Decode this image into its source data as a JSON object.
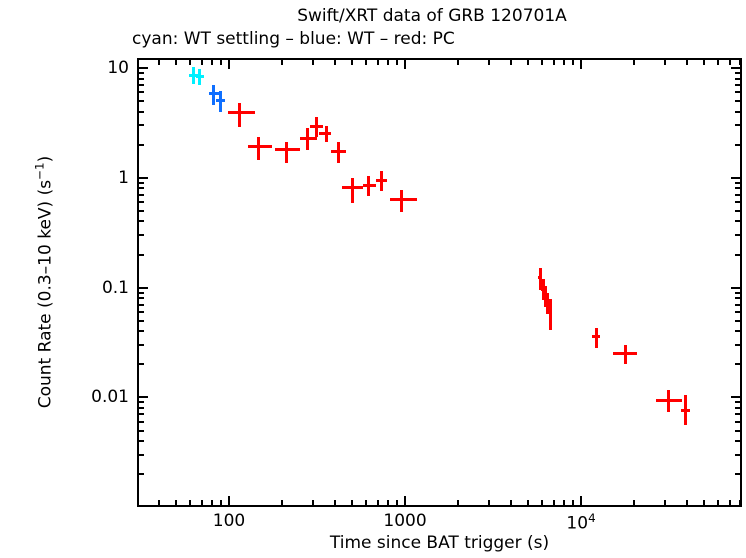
{
  "title": "Swift/XRT data of GRB 120701A",
  "legend_line": "cyan: WT settling – blue: WT – red: PC",
  "x_axis": {
    "label": "Time since BAT trigger (s)",
    "ticks": [
      {
        "v": 100,
        "base": "100",
        "sup": ""
      },
      {
        "v": 1000,
        "base": "1000",
        "sup": ""
      },
      {
        "v": 10000,
        "base": "10",
        "sup": "4"
      }
    ]
  },
  "y_axis": {
    "label_main": "Count Rate (0.3–10 keV) (s",
    "label_sup": "−1",
    "label_close": ")",
    "ticks": [
      {
        "v": 10,
        "label": "10"
      },
      {
        "v": 1,
        "label": "1"
      },
      {
        "v": 0.1,
        "label": "0.1"
      },
      {
        "v": 0.01,
        "label": "0.01"
      }
    ]
  },
  "chart_data": {
    "type": "scatter",
    "title": "Swift/XRT data of GRB 120701A",
    "xlabel": "Time since BAT trigger (s)",
    "ylabel": "Count Rate (0.3–10 keV) (s−1)",
    "xscale": "log",
    "yscale": "log",
    "xlim": [
      30.8,
      80000
    ],
    "ylim": [
      0.00105,
      11.8
    ],
    "grid": false,
    "legend_position": "inline-text-top-left",
    "marker": "cross-with-error-bars",
    "series": [
      {
        "name": "WT settling",
        "color": "#00f0ff",
        "points": [
          {
            "t": 63,
            "t_lo": 59,
            "t_hi": 67,
            "r": 8.6,
            "r_lo": 7.2,
            "r_hi": 10.2
          },
          {
            "t": 68,
            "t_lo": 65,
            "t_hi": 72,
            "r": 8.3,
            "r_lo": 7.0,
            "r_hi": 9.8
          }
        ]
      },
      {
        "name": "WT",
        "color": "#0f6fff",
        "points": [
          {
            "t": 82,
            "t_lo": 77,
            "t_hi": 88,
            "r": 5.9,
            "r_lo": 4.6,
            "r_hi": 7.0
          },
          {
            "t": 89,
            "t_lo": 84,
            "t_hi": 95,
            "r": 5.0,
            "r_lo": 4.0,
            "r_hi": 6.1
          }
        ]
      },
      {
        "name": "PC",
        "color": "#ff0000",
        "points": [
          {
            "t": 114,
            "t_lo": 99,
            "t_hi": 140,
            "r": 3.9,
            "r_lo": 2.9,
            "r_hi": 4.8
          },
          {
            "t": 148,
            "t_lo": 128,
            "t_hi": 176,
            "r": 1.91,
            "r_lo": 1.46,
            "r_hi": 2.36
          },
          {
            "t": 211,
            "t_lo": 182,
            "t_hi": 254,
            "r": 1.8,
            "r_lo": 1.37,
            "r_hi": 2.12
          },
          {
            "t": 281,
            "t_lo": 253,
            "t_hi": 316,
            "r": 2.3,
            "r_lo": 1.8,
            "r_hi": 2.85
          },
          {
            "t": 316,
            "t_lo": 289,
            "t_hi": 342,
            "r": 2.91,
            "r_lo": 2.36,
            "r_hi": 3.6
          },
          {
            "t": 356,
            "t_lo": 325,
            "t_hi": 379,
            "r": 2.51,
            "r_lo": 2.12,
            "r_hi": 2.97
          },
          {
            "t": 417,
            "t_lo": 380,
            "t_hi": 462,
            "r": 1.72,
            "r_lo": 1.37,
            "r_hi": 2.12
          },
          {
            "t": 500,
            "t_lo": 440,
            "t_hi": 578,
            "r": 0.81,
            "r_lo": 0.59,
            "r_hi": 1.0
          },
          {
            "t": 624,
            "t_lo": 578,
            "t_hi": 683,
            "r": 0.85,
            "r_lo": 0.68,
            "r_hi": 1.04
          },
          {
            "t": 731,
            "t_lo": 683,
            "t_hi": 790,
            "r": 0.94,
            "r_lo": 0.76,
            "r_hi": 1.16
          },
          {
            "t": 961,
            "t_lo": 822,
            "t_hi": 1170,
            "r": 0.63,
            "r_lo": 0.49,
            "r_hi": 0.78
          },
          {
            "t": 5850,
            "t_lo": 5700,
            "t_hi": 6000,
            "r": 0.123,
            "r_lo": 0.096,
            "r_hi": 0.152
          },
          {
            "t": 6080,
            "t_lo": 5950,
            "t_hi": 6200,
            "r": 0.096,
            "r_lo": 0.077,
            "r_hi": 0.12
          },
          {
            "t": 6250,
            "t_lo": 6120,
            "t_hi": 6380,
            "r": 0.083,
            "r_lo": 0.067,
            "r_hi": 0.103
          },
          {
            "t": 6420,
            "t_lo": 6300,
            "t_hi": 6550,
            "r": 0.072,
            "r_lo": 0.058,
            "r_hi": 0.09
          },
          {
            "t": 6670,
            "t_lo": 6500,
            "t_hi": 6850,
            "r": 0.063,
            "r_lo": 0.041,
            "r_hi": 0.078
          },
          {
            "t": 12200,
            "t_lo": 11600,
            "t_hi": 12800,
            "r": 0.036,
            "r_lo": 0.028,
            "r_hi": 0.043
          },
          {
            "t": 17800,
            "t_lo": 15200,
            "t_hi": 20800,
            "r": 0.025,
            "r_lo": 0.02,
            "r_hi": 0.03
          },
          {
            "t": 31600,
            "t_lo": 26700,
            "t_hi": 37700,
            "r": 0.0094,
            "r_lo": 0.0074,
            "r_hi": 0.0116
          },
          {
            "t": 39000,
            "t_lo": 37000,
            "t_hi": 41500,
            "r": 0.0076,
            "r_lo": 0.0056,
            "r_hi": 0.0105
          }
        ]
      }
    ]
  }
}
